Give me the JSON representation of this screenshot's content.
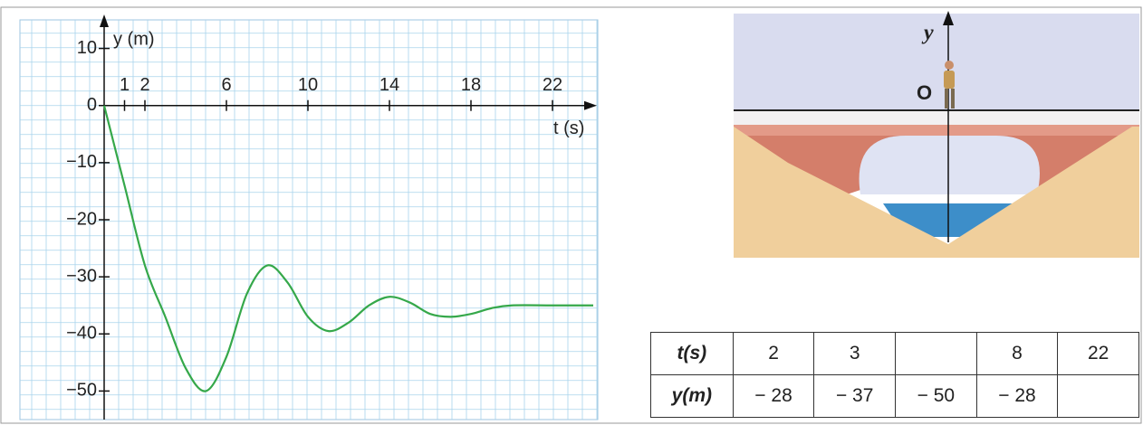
{
  "chart_data": {
    "type": "line",
    "x_label": "t (s)",
    "y_label": "y (m)",
    "x": [
      0,
      1,
      2,
      3,
      4,
      5,
      6,
      7,
      8,
      9,
      10,
      11,
      12,
      13,
      14,
      15,
      16,
      17,
      18,
      19,
      20,
      22,
      24
    ],
    "series": [
      {
        "color": "#35a84a",
        "values": [
          0,
          -14,
          -28,
          -37,
          -46,
          -50,
          -44,
          -33,
          -28,
          -31,
          -37,
          -39.5,
          -38,
          -35,
          -33.5,
          -34.5,
          -36.5,
          -37,
          -36.5,
          -35.5,
          -35,
          -35,
          -35
        ]
      }
    ],
    "xlim": [
      -4,
      24
    ],
    "ylim": [
      -55,
      15
    ],
    "xticks": [
      1,
      2,
      6,
      10,
      14,
      18,
      22
    ],
    "yticks": [
      10,
      0,
      {
        "value": -10,
        "label": "−10"
      },
      {
        "value": -20,
        "label": "−20"
      },
      {
        "value": -30,
        "label": "−30"
      },
      {
        "value": -40,
        "label": "−40"
      },
      {
        "value": -50,
        "label": "−50"
      }
    ],
    "grid": true
  },
  "diagram": {
    "axis_label": "y",
    "origin_label": "O"
  },
  "table": {
    "rows": [
      [
        "t(s)",
        "2",
        "3",
        null,
        "8",
        "22"
      ],
      [
        "y(m)",
        "− 28",
        "− 37",
        "− 50",
        "− 28",
        null
      ]
    ]
  }
}
